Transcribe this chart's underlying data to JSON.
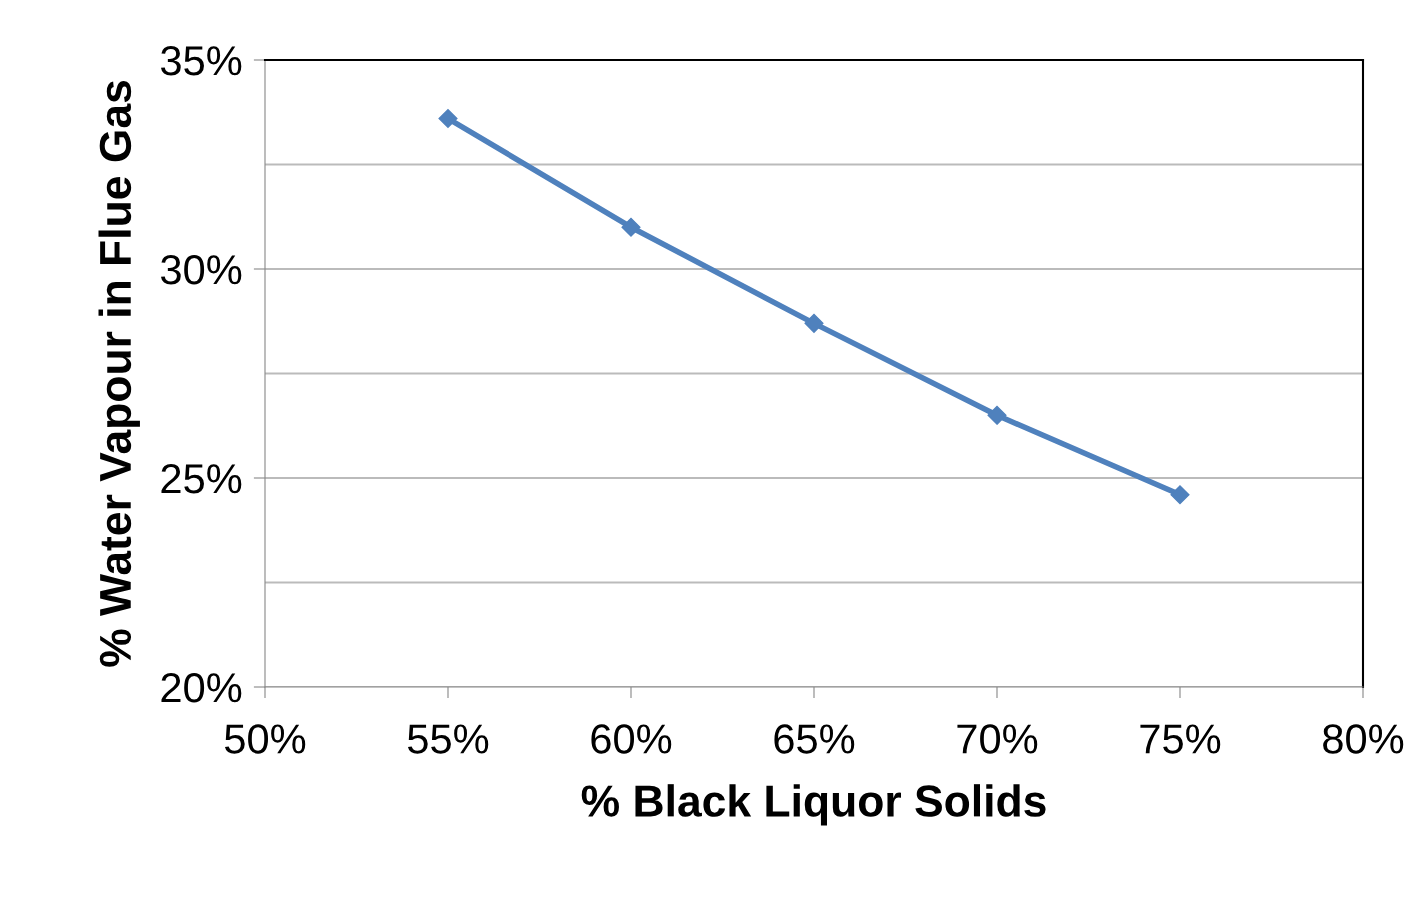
{
  "chart_data": {
    "type": "line",
    "xlabel": "% Black Liquor Solids",
    "ylabel": "% Water Vapour in Flue Gas",
    "x": [
      55,
      60,
      65,
      70,
      75
    ],
    "series": [
      {
        "color": "#4f81bd",
        "values": [
          33.6,
          31.0,
          28.7,
          26.5,
          24.6
        ]
      }
    ],
    "xlim": [
      50,
      80
    ],
    "xticks": [
      {
        "value": 50,
        "label": "50%"
      },
      {
        "value": 55,
        "label": "55%"
      },
      {
        "value": 60,
        "label": "60%"
      },
      {
        "value": 65,
        "label": "65%"
      },
      {
        "value": 70,
        "label": "70%"
      },
      {
        "value": 75,
        "label": "75%"
      },
      {
        "value": 80,
        "label": "80%"
      }
    ],
    "ylim": [
      20,
      35
    ],
    "yticks": [
      {
        "value": 20,
        "label": "20%"
      },
      {
        "value": 22.5,
        "label": null
      },
      {
        "value": 25,
        "label": "25%"
      },
      {
        "value": 27.5,
        "label": null
      },
      {
        "value": 30,
        "label": "30%"
      },
      {
        "value": 32.5,
        "label": null
      },
      {
        "value": 35,
        "label": "35%"
      }
    ],
    "grid": "y",
    "marker": "diamond",
    "line_style": "solid"
  }
}
